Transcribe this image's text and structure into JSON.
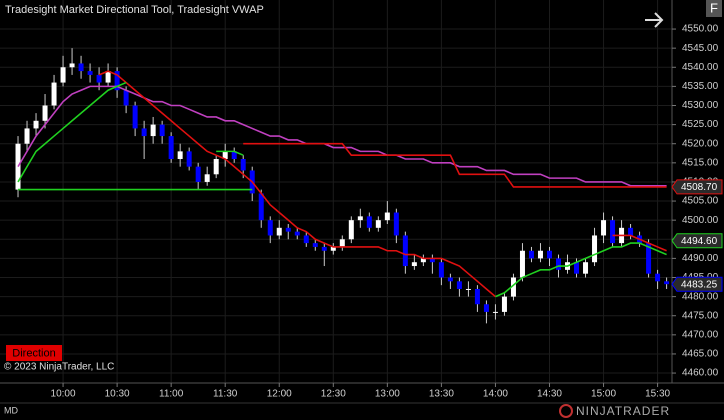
{
  "chart_data": {
    "type": "candlestick",
    "title": "Tradesight Market Directional Tool, Tradesight VWAP",
    "copyright": "© 2023 NinjaTrader, LLC",
    "indicator_button": "Direction",
    "panel_label": "MD",
    "corner_button": "F",
    "logo": "NINJATRADER",
    "up_color": "#ffffff",
    "down_color": "#0000ff",
    "grid": true,
    "x": [
      "9:35",
      "9:40",
      "9:45",
      "9:50",
      "9:55",
      "10:00",
      "10:05",
      "10:10",
      "10:15",
      "10:20",
      "10:25",
      "10:30",
      "10:35",
      "10:40",
      "10:45",
      "10:50",
      "10:55",
      "11:00",
      "11:05",
      "11:10",
      "11:15",
      "11:20",
      "11:25",
      "11:30",
      "11:35",
      "11:40",
      "11:45",
      "11:50",
      "11:55",
      "12:00",
      "12:05",
      "12:10",
      "12:15",
      "12:20",
      "12:25",
      "12:30",
      "12:35",
      "12:40",
      "12:45",
      "12:50",
      "12:55",
      "13:00",
      "13:05",
      "13:10",
      "13:15",
      "13:20",
      "13:25",
      "13:30",
      "13:35",
      "13:40",
      "13:45",
      "13:50",
      "13:55",
      "14:00",
      "14:05",
      "14:10",
      "14:15",
      "14:20",
      "14:25",
      "14:30",
      "14:35",
      "14:40",
      "14:45",
      "14:50",
      "14:55",
      "15:00",
      "15:05",
      "15:10",
      "15:15",
      "15:20",
      "15:25",
      "15:30",
      "15:35"
    ],
    "open": [
      4508,
      4520,
      4524,
      4526,
      4530,
      4536,
      4540,
      4541,
      4539,
      4538,
      4536,
      4539,
      4534,
      4530,
      4524,
      4522,
      4525,
      4522,
      4516,
      4518,
      4514,
      4510,
      4512,
      4516,
      4518,
      4516,
      4513,
      4507,
      4500,
      4496,
      4498,
      4497,
      4496,
      4494,
      4493,
      4492,
      4493,
      4495,
      4500,
      4501,
      4498,
      4500,
      4502,
      4496,
      4488,
      4489,
      4490,
      4489,
      4485,
      4484,
      4482,
      4482,
      4478,
      4476,
      4476,
      4480,
      4485,
      4492,
      4490,
      4492,
      4490,
      4487,
      4489,
      4486,
      4489,
      4496,
      4500,
      4494,
      4498,
      4496,
      4494,
      4486,
      4484
    ],
    "high": [
      4522,
      4526,
      4528,
      4533,
      4538,
      4543,
      4545,
      4543,
      4541,
      4540,
      4541,
      4540,
      4535,
      4531,
      4526,
      4527,
      4526,
      4523,
      4520,
      4519,
      4515,
      4514,
      4517,
      4520,
      4519,
      4517,
      4514,
      4508,
      4501,
      4500,
      4499,
      4498,
      4497,
      4495,
      4494,
      4494,
      4496,
      4501,
      4503,
      4502,
      4501,
      4505,
      4503,
      4497,
      4491,
      4491,
      4491,
      4490,
      4486,
      4485,
      4484,
      4483,
      4479,
      4478,
      4481,
      4486,
      4494,
      4493,
      4494,
      4493,
      4491,
      4491,
      4490,
      4490,
      4498,
      4502,
      4501,
      4500,
      4499,
      4497,
      4495,
      4487,
      4485
    ],
    "low": [
      4506,
      4518,
      4522,
      4524,
      4529,
      4535,
      4538,
      4537,
      4536,
      4534,
      4535,
      4532,
      4528,
      4522,
      4516,
      4520,
      4520,
      4515,
      4514,
      4513,
      4508,
      4509,
      4511,
      4514,
      4515,
      4511,
      4505,
      4498,
      4494,
      4495,
      4495,
      4495,
      4493,
      4492,
      4488,
      4491,
      4492,
      4494,
      4498,
      4497,
      4497,
      4499,
      4494,
      4486,
      4487,
      4488,
      4486,
      4483,
      4482,
      4480,
      4480,
      4476,
      4473,
      4474,
      4475,
      4479,
      4484,
      4489,
      4489,
      4488,
      4485,
      4486,
      4485,
      4485,
      4488,
      4494,
      4493,
      4493,
      4495,
      4493,
      4485,
      4482,
      4482
    ],
    "close": [
      4520,
      4524,
      4526,
      4530,
      4536,
      4540,
      4541,
      4539,
      4538,
      4536,
      4539,
      4534,
      4530,
      4524,
      4522,
      4525,
      4522,
      4516,
      4518,
      4514,
      4510,
      4512,
      4516,
      4518,
      4516,
      4513,
      4507,
      4500,
      4496,
      4498,
      4497,
      4496,
      4494,
      4493,
      4492,
      4493,
      4495,
      4500,
      4501,
      4498,
      4500,
      4502,
      4496,
      4488,
      4489,
      4490,
      4489,
      4485,
      4484,
      4482,
      4482,
      4478,
      4476,
      4476,
      4480,
      4485,
      4492,
      4490,
      4492,
      4490,
      4487,
      4489,
      4486,
      4489,
      4496,
      4500,
      4494,
      4498,
      4496,
      4494,
      4486,
      4484,
      4483.25
    ],
    "series": [
      {
        "color": "#c040c0",
        "values": [
          4514,
          4518,
          4522,
          4525,
          4528,
          4531,
          4533,
          4534,
          4535,
          4535,
          4535,
          4535,
          4534,
          4533,
          4532,
          4531,
          4531,
          4530,
          4530,
          4529,
          4528,
          4527,
          4527,
          4526,
          4526,
          4525,
          4524,
          4523,
          4522,
          4522,
          4521,
          4521,
          4520,
          4520,
          4520,
          4519,
          4519,
          4519,
          4518,
          4518,
          4518,
          4517,
          4517,
          4516,
          4516,
          4516,
          4515,
          4515,
          4515,
          4514,
          4514,
          4514,
          4513,
          4513,
          4513,
          4512,
          4512,
          4512,
          4512,
          4511,
          4511,
          4511,
          4511,
          4510,
          4510,
          4510,
          4510,
          4510,
          4509,
          4509,
          4509,
          4509,
          4509
        ]
      },
      {
        "color": "#e01010",
        "values": [
          null,
          null,
          null,
          null,
          null,
          null,
          null,
          null,
          null,
          4538,
          4539,
          4538,
          4536,
          4534,
          4532,
          4530,
          4528,
          4526,
          4524,
          4522,
          4520,
          4518,
          4517,
          4516,
          4514,
          4512,
          4510,
          4507,
          4504,
          4502,
          4500,
          4498,
          4497,
          4495,
          4494,
          4493,
          4493,
          4493,
          4493,
          4493,
          4493,
          4492,
          4492,
          4491,
          4491,
          4490,
          4490,
          4490,
          4489,
          4488,
          4486,
          4484,
          4482,
          4480,
          null,
          null,
          null,
          null,
          null,
          null,
          null,
          null,
          null,
          null,
          null,
          null,
          4496,
          4496,
          4496,
          4495,
          4494,
          4493,
          4492
        ]
      },
      {
        "color": "#20d020",
        "values": [
          4510,
          4514,
          4518,
          4520,
          4522,
          4524,
          4526,
          4528,
          4530,
          4532,
          4534,
          4535,
          4536,
          null,
          null,
          null,
          null,
          null,
          null,
          null,
          null,
          null,
          4518,
          4518,
          4518,
          4517,
          null,
          null,
          null,
          null,
          null,
          null,
          null,
          null,
          null,
          null,
          null,
          null,
          null,
          null,
          null,
          null,
          null,
          null,
          null,
          null,
          null,
          null,
          null,
          null,
          null,
          null,
          null,
          4480,
          4481,
          4483,
          4485,
          4486,
          4487,
          4487,
          4488,
          4488,
          4489,
          4490,
          4491,
          4492,
          4493,
          4493,
          4494,
          4494,
          4493,
          4492,
          4491
        ]
      },
      {
        "color": "#20d020",
        "values": [
          4508,
          4508,
          4508,
          4508,
          4508,
          4508,
          4508,
          4508,
          4508,
          4508,
          4508,
          4508,
          4508,
          4508,
          4508,
          4508,
          4508,
          4508,
          4508,
          4508,
          4508,
          4508,
          4508,
          4508,
          4508,
          4508,
          4508,
          null,
          null,
          null,
          null,
          null,
          null,
          null,
          null,
          null,
          null,
          null,
          null,
          null,
          null,
          null,
          null,
          null,
          null,
          null,
          null,
          null,
          null,
          null,
          null,
          null,
          null,
          null,
          null,
          null,
          null,
          null,
          null,
          null,
          null,
          null,
          null,
          null,
          null,
          null,
          null,
          null,
          null,
          null,
          null,
          null,
          null
        ]
      },
      {
        "color": "#e01010",
        "values": [
          null,
          null,
          null,
          null,
          null,
          null,
          null,
          null,
          null,
          null,
          null,
          null,
          null,
          null,
          null,
          null,
          null,
          null,
          null,
          null,
          null,
          null,
          null,
          null,
          null,
          4520,
          4520,
          4520,
          4520,
          4520,
          4520,
          4520,
          4520,
          4520,
          4520,
          4520,
          4520,
          4517,
          4517,
          4517,
          4517,
          4517,
          4517,
          4517,
          4517,
          4517,
          4517,
          4517,
          4517,
          4512,
          4512,
          4512,
          4512,
          4512,
          4512,
          4508.7,
          4508.7,
          4508.7,
          4508.7,
          4508.7,
          4508.7,
          4508.7,
          4508.7,
          4508.7,
          4508.7,
          4508.7,
          4508.7,
          4508.7,
          4508.7,
          4508.7,
          4508.7,
          4508.7,
          4508.7
        ]
      }
    ],
    "price_markers": [
      {
        "value": 4508.7,
        "label": "4508.70",
        "color": "#e01010"
      },
      {
        "value": 4494.6,
        "label": "4494.60",
        "color": "#20d020"
      },
      {
        "value": 4483.25,
        "label": "4483.25",
        "color": "#0000ff"
      }
    ],
    "xlim": [
      "9:25",
      "15:38"
    ],
    "xticks": [
      "10:00",
      "10:30",
      "11:00",
      "11:30",
      "12:00",
      "12:30",
      "13:00",
      "13:30",
      "14:00",
      "14:30",
      "15:00",
      "15:30"
    ],
    "ylim": [
      4457.4,
      4557.6
    ],
    "yticks": [
      {
        "value": 4460,
        "label": "4460.00"
      },
      {
        "value": 4465,
        "label": "4465.00"
      },
      {
        "value": 4470,
        "label": "4470.00"
      },
      {
        "value": 4475,
        "label": "4475.00"
      },
      {
        "value": 4480,
        "label": "4480.00"
      },
      {
        "value": 4485,
        "label": "4485.00"
      },
      {
        "value": 4490,
        "label": "4490.00"
      },
      {
        "value": 4495,
        "label": "4495.00"
      },
      {
        "value": 4500,
        "label": "4500.00"
      },
      {
        "value": 4505,
        "label": "4505.00"
      },
      {
        "value": 4510,
        "label": "4510.00"
      },
      {
        "value": 4515,
        "label": "4515.00"
      },
      {
        "value": 4520,
        "label": "4520.00"
      },
      {
        "value": 4525,
        "label": "4525.00"
      },
      {
        "value": 4530,
        "label": "4530.00"
      },
      {
        "value": 4535,
        "label": "4535.00"
      },
      {
        "value": 4540,
        "label": "4540.00"
      },
      {
        "value": 4545,
        "label": "4545.00"
      },
      {
        "value": 4550,
        "label": "4550.00"
      }
    ]
  }
}
